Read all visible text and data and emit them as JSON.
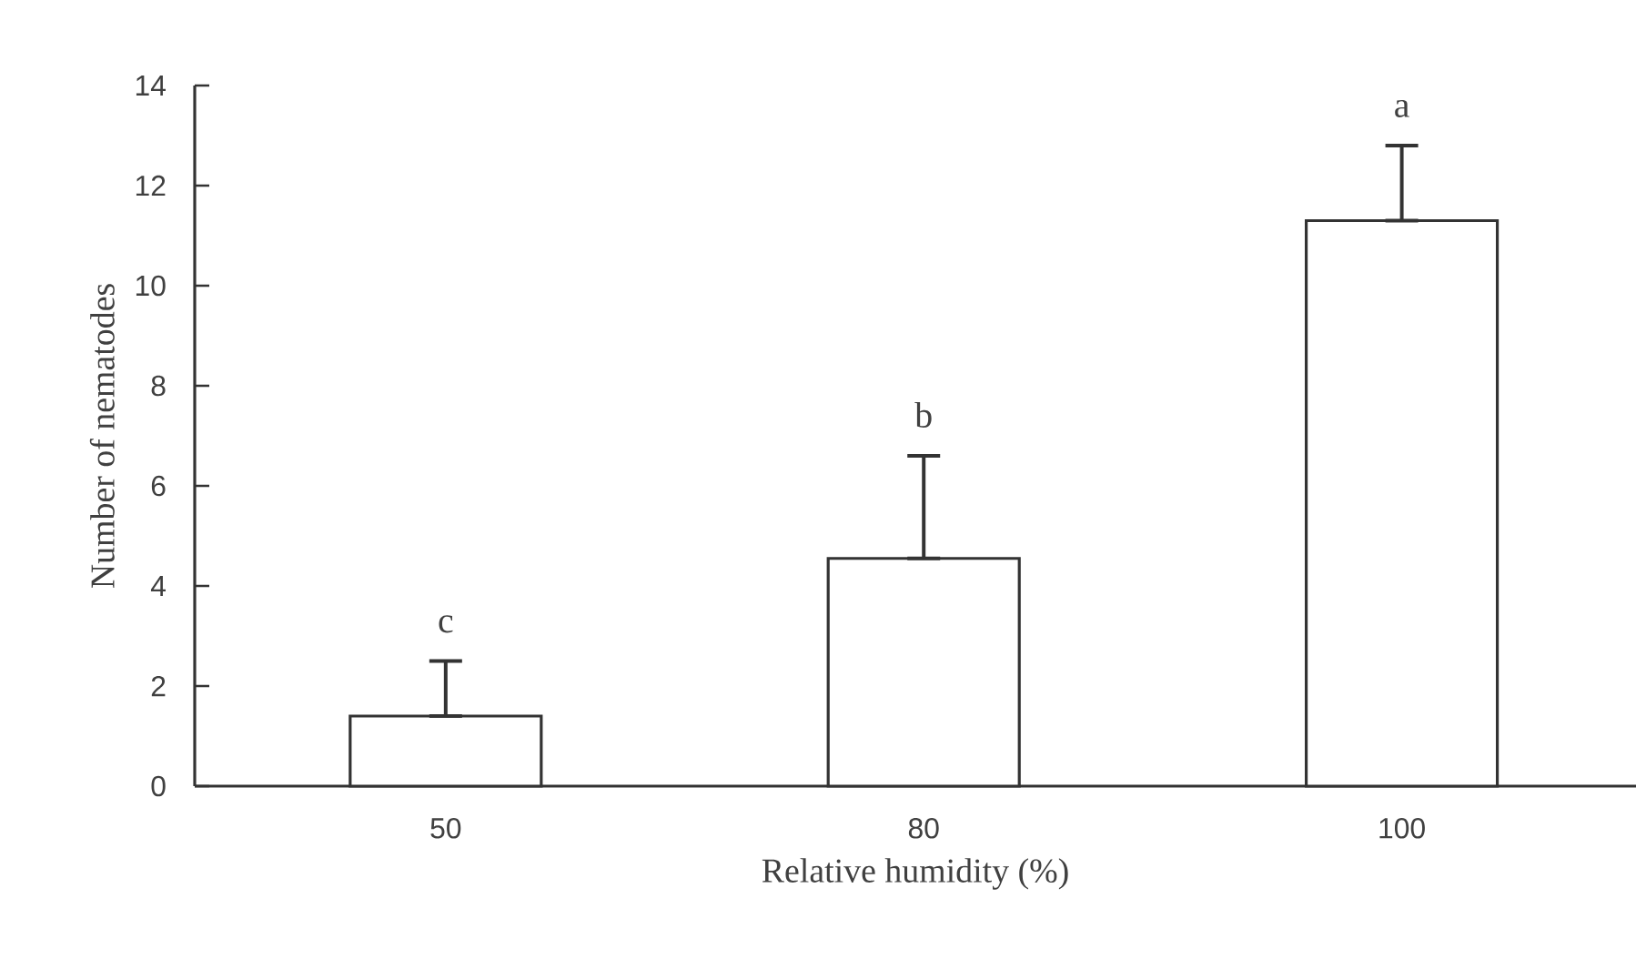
{
  "chart_data": {
    "type": "bar",
    "xlabel": "Relative humidity (%)",
    "ylabel": "Number of nematodes",
    "categories": [
      "50",
      "80",
      "100"
    ],
    "values": [
      1.4,
      4.55,
      11.3
    ],
    "errors": [
      [
        1.4,
        2.5
      ],
      [
        4.55,
        6.6
      ],
      [
        11.3,
        12.8
      ]
    ],
    "color": "#ffffff",
    "ylim": [
      0,
      14
    ],
    "yticks": [
      0,
      2,
      4,
      6,
      8,
      10,
      12,
      14
    ],
    "annotations": [
      "c",
      "b",
      "a"
    ]
  }
}
